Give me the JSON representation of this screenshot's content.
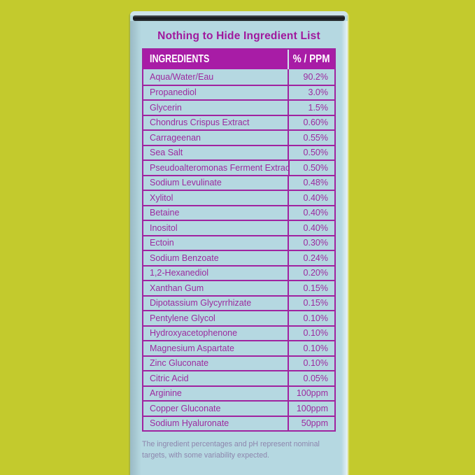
{
  "panel": {
    "title": "Nothing to Hide Ingredient List",
    "footnote": "The ingredient percentages and pH represent nominal targets, with some variability expected."
  },
  "table": {
    "headers": {
      "ingredients": "INGREDIENTS",
      "amount": "% / PPM"
    },
    "rows": [
      {
        "name": "Aqua/Water/Eau",
        "value": "90.2%"
      },
      {
        "name": "Propanediol",
        "value": "3.0%"
      },
      {
        "name": "Glycerin",
        "value": "1.5%"
      },
      {
        "name": "Chondrus Crispus Extract",
        "value": "0.60%"
      },
      {
        "name": "Carrageenan",
        "value": "0.55%"
      },
      {
        "name": "Sea Salt",
        "value": "0.50%"
      },
      {
        "name": "Pseudoalteromonas Ferment Extract",
        "value": "0.50%"
      },
      {
        "name": "Sodium Levulinate",
        "value": "0.48%"
      },
      {
        "name": "Xylitol",
        "value": "0.40%"
      },
      {
        "name": "Betaine",
        "value": "0.40%"
      },
      {
        "name": "Inositol",
        "value": "0.40%"
      },
      {
        "name": "Ectoin",
        "value": "0.30%"
      },
      {
        "name": "Sodium Benzoate",
        "value": "0.24%"
      },
      {
        "name": "1,2-Hexanediol",
        "value": "0.20%"
      },
      {
        "name": "Xanthan Gum",
        "value": "0.15%"
      },
      {
        "name": "Dipotassium Glycyrrhizate",
        "value": "0.15%"
      },
      {
        "name": "Pentylene Glycol",
        "value": "0.10%"
      },
      {
        "name": "Hydroxyacetophenone",
        "value": "0.10%"
      },
      {
        "name": "Magnesium Aspartate",
        "value": "0.10%"
      },
      {
        "name": "Zinc Gluconate",
        "value": "0.10%"
      },
      {
        "name": "Citric Acid",
        "value": "0.05%"
      },
      {
        "name": "Arginine",
        "value": "100ppm"
      },
      {
        "name": "Copper Gluconate",
        "value": "100ppm"
      },
      {
        "name": "Sodium Hyaluronate",
        "value": "50ppm"
      }
    ]
  },
  "colors": {
    "bg": "#c3ca2d",
    "face": "#b5d8e1",
    "lip": "#cfe4ea",
    "magenta": "#a023a0",
    "header-bg": "#a81ca6",
    "header-text": "#ffffff",
    "text-magenta": "#9c2a9f",
    "title": "#a0189d",
    "footnote": "#8d86ad"
  }
}
